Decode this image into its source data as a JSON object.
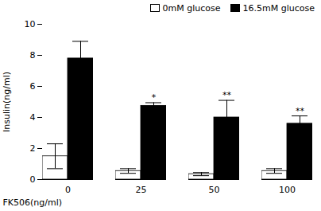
{
  "chart_data": {
    "type": "bar",
    "categories": [
      "0",
      "25",
      "50",
      "100"
    ],
    "series": [
      {
        "name": "0mM glucose",
        "color": "#ffffff",
        "values": [
          1.5,
          0.55,
          0.35,
          0.55
        ],
        "errors": [
          0.8,
          0.15,
          0.1,
          0.15
        ]
      },
      {
        "name": "16.5mM glucose",
        "color": "#000000",
        "values": [
          7.8,
          4.75,
          4.0,
          3.6
        ],
        "errors": [
          1.1,
          0.2,
          1.1,
          0.5
        ],
        "annotations": [
          null,
          "*",
          "**",
          "**"
        ]
      }
    ],
    "ylabel": "Insulin(ng/ml)",
    "xlabel": "FK506(ng/ml)",
    "ylim": [
      0,
      10
    ],
    "yticks": [
      0,
      2,
      4,
      6,
      8,
      10
    ],
    "legend": "upper right",
    "grid": false
  }
}
